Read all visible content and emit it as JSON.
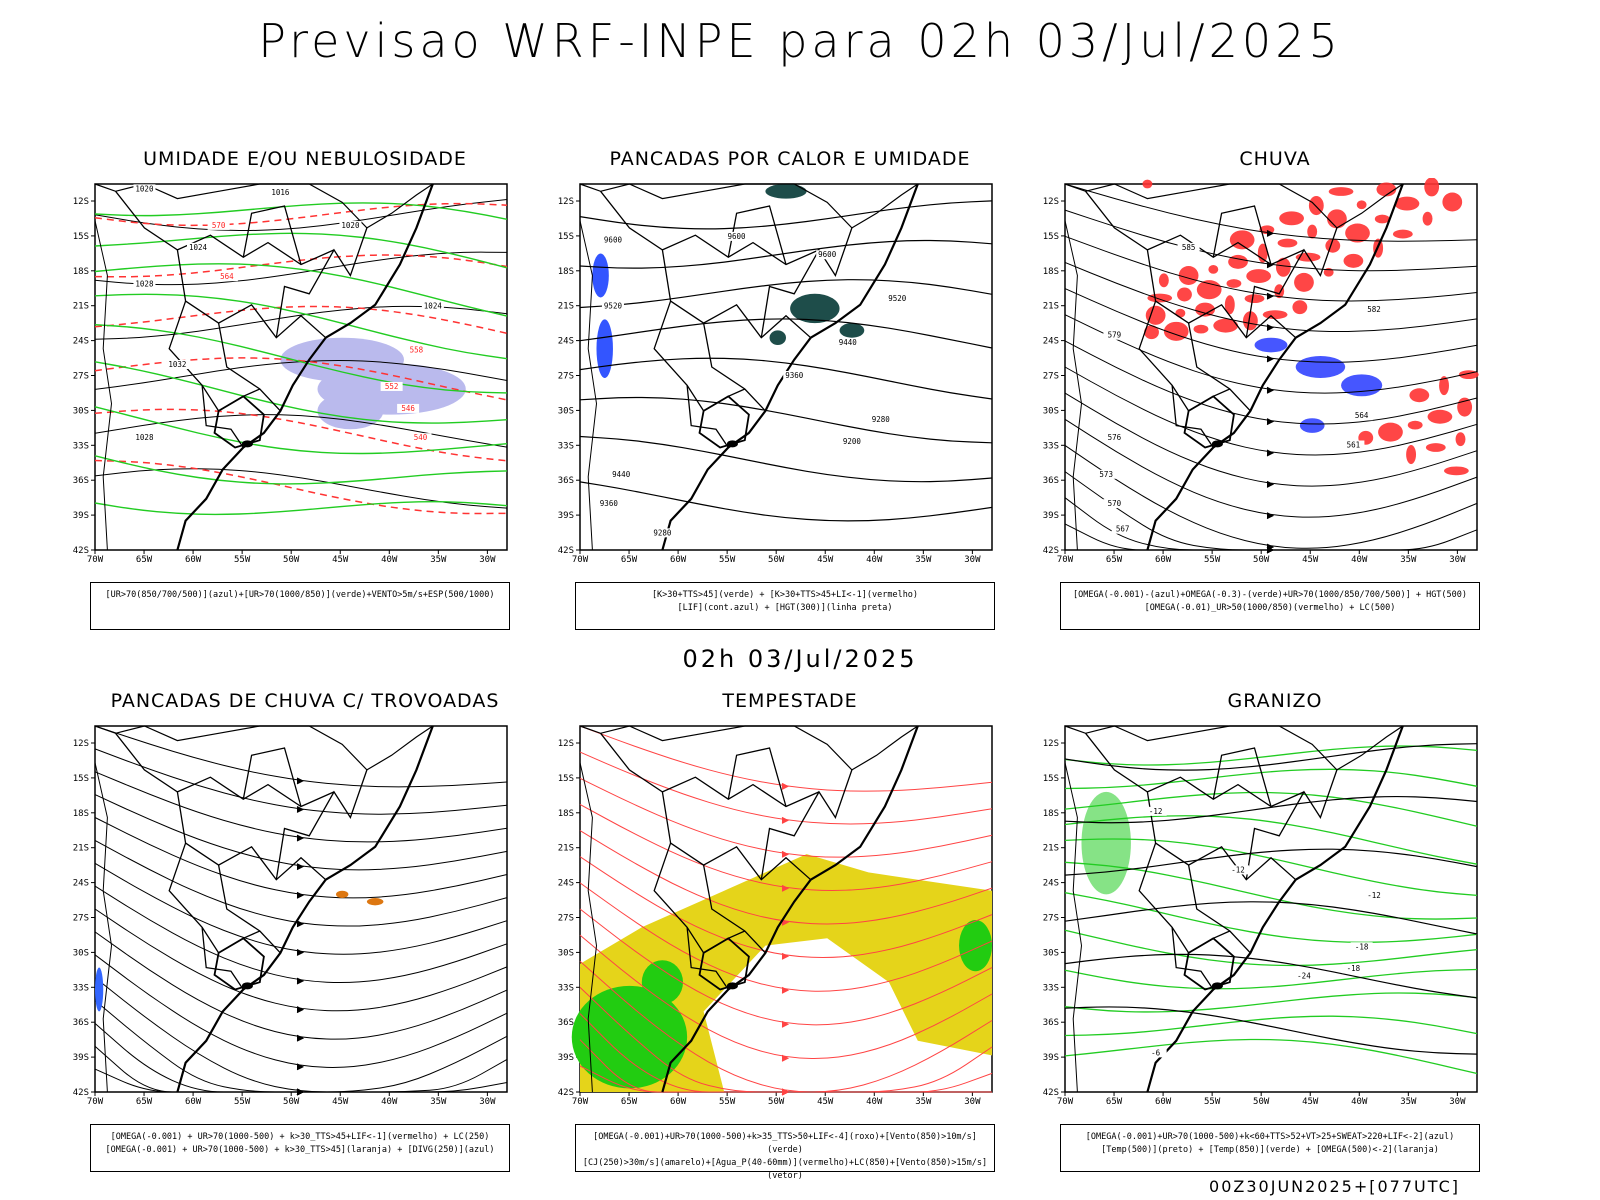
{
  "header": {
    "title": "Previsao WRF-INPE  para 02h 03/Jul/2025"
  },
  "mid": {
    "datetime": "02h 03/Jul/2025"
  },
  "footer": {
    "run": "00Z30JUN2025+[077UTC]"
  },
  "axes": {
    "lat_ticks": [
      "12S",
      "15S",
      "18S",
      "21S",
      "24S",
      "27S",
      "30S",
      "33S",
      "36S",
      "39S",
      "42S"
    ],
    "lon_ticks": [
      "70W",
      "65W",
      "60W",
      "55W",
      "50W",
      "45W",
      "40W",
      "35W",
      "30W"
    ]
  },
  "panels": [
    {
      "title": "UMIDADE E/OU NEBULOSIDADE",
      "legend": [
        "[UR>70(850/700/500)](azul)+[UR>70(1000/850)](verde)+VENTO>5m/s+ESP(500/1000)"
      ],
      "labels": [
        "1020",
        "1016",
        "1020",
        "1024",
        "1028",
        "1032",
        "1028",
        "1024",
        "570",
        "564",
        "558",
        "552",
        "546",
        "540"
      ]
    },
    {
      "title": "PANCADAS POR CALOR E UMIDADE",
      "legend": [
        "[K>30+TTS>45](verde) + [K>30+TTS>45+LI<-1](vermelho)",
        "[LIF](cont.azul) + [HGT(300)](linha preta)"
      ],
      "labels": [
        "9600",
        "9520",
        "9600",
        "9600",
        "9520",
        "9440",
        "9360",
        "9280",
        "9200",
        "9440",
        "9360",
        "9280"
      ]
    },
    {
      "title": "CHUVA",
      "legend": [
        "[OMEGA(-0.001)-(azul)+OMEGA(-0.3)-(verde)+UR>70(1000/850/700/500)] + HGT(500)",
        "[OMEGA(-0.01)_UR>50(1000/850)(vermelho) + LC(500)"
      ],
      "labels": [
        "585",
        "582",
        "579",
        "576",
        "573",
        "570",
        "567",
        "564",
        "561"
      ]
    },
    {
      "title": "PANCADAS DE CHUVA C/ TROVOADAS",
      "legend": [
        "[OMEGA(-0.001) + UR>70(1000-500) + k>30_TTS>45+LIF<-1](vermelho) + LC(250)",
        "[OMEGA(-0.001) + UR>70(1000-500) + k>30_TTS>45](laranja) + [DIVG(250)](azul)"
      ],
      "labels": []
    },
    {
      "title": "TEMPESTADE",
      "legend": [
        "[OMEGA(-0.001)+UR>70(1000-500)+k>35_TTS>50+LIF<-4](roxo)+[Vento(850)>10m/s](verde)",
        "[CJ(250)>30m/s](amarelo)+[Agua_P(40-60mm)](vermelho)+LC(850)+[Vento(850)>15m/s](vetor)"
      ],
      "labels": []
    },
    {
      "title": "GRANIZO",
      "legend": [
        "[OMEGA(-0.001)+UR>70(1000-500)+k<60+TTS>52+VT>25+SWEAT>220+LIF<-2](azul)",
        "[Temp(500)](preto) + [Temp(850)](verde) + [OMEGA(500)<-2](laranja)"
      ],
      "labels": [
        "-12",
        "-12",
        "-12",
        "-18",
        "-24",
        "-18",
        "-6"
      ]
    }
  ]
}
